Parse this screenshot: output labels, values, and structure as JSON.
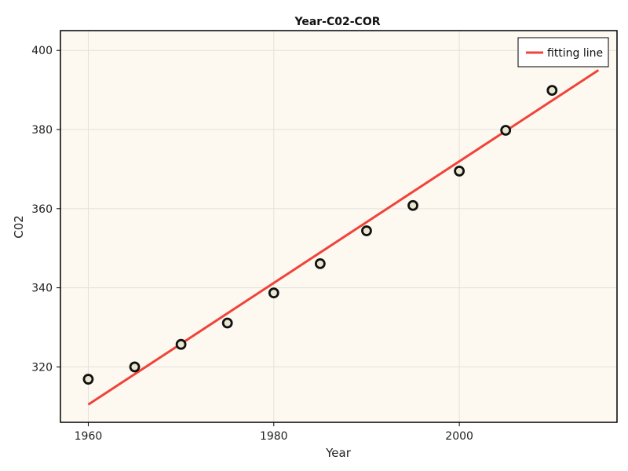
{
  "chart_data": {
    "type": "scatter",
    "title": "Year-C02-COR",
    "xlabel": "Year",
    "ylabel": "C02",
    "xlim": [
      1957,
      2017
    ],
    "ylim": [
      306,
      405
    ],
    "xticks": [
      1960,
      1980,
      2000
    ],
    "yticks": [
      320,
      340,
      360,
      380,
      400
    ],
    "grid": true,
    "legend_position": "top-right",
    "colors": {
      "plot_background": "#fdf9f1",
      "grid": "#e3e0dc",
      "marker_fill": "#e9e7cf",
      "marker_edge": "#111111",
      "fit_line": "#f0443a"
    },
    "series": [
      {
        "kind": "points",
        "x": [
          1960,
          1965,
          1970,
          1975,
          1980,
          1985,
          1990,
          1995,
          2000,
          2005,
          2010
        ],
        "y": [
          316.9,
          320.0,
          325.7,
          331.1,
          338.7,
          346.1,
          354.4,
          360.8,
          369.5,
          379.8,
          389.9
        ]
      },
      {
        "kind": "line",
        "name": "fitting line",
        "x": [
          1960,
          2015
        ],
        "y": [
          310.5,
          395.0
        ]
      }
    ]
  }
}
